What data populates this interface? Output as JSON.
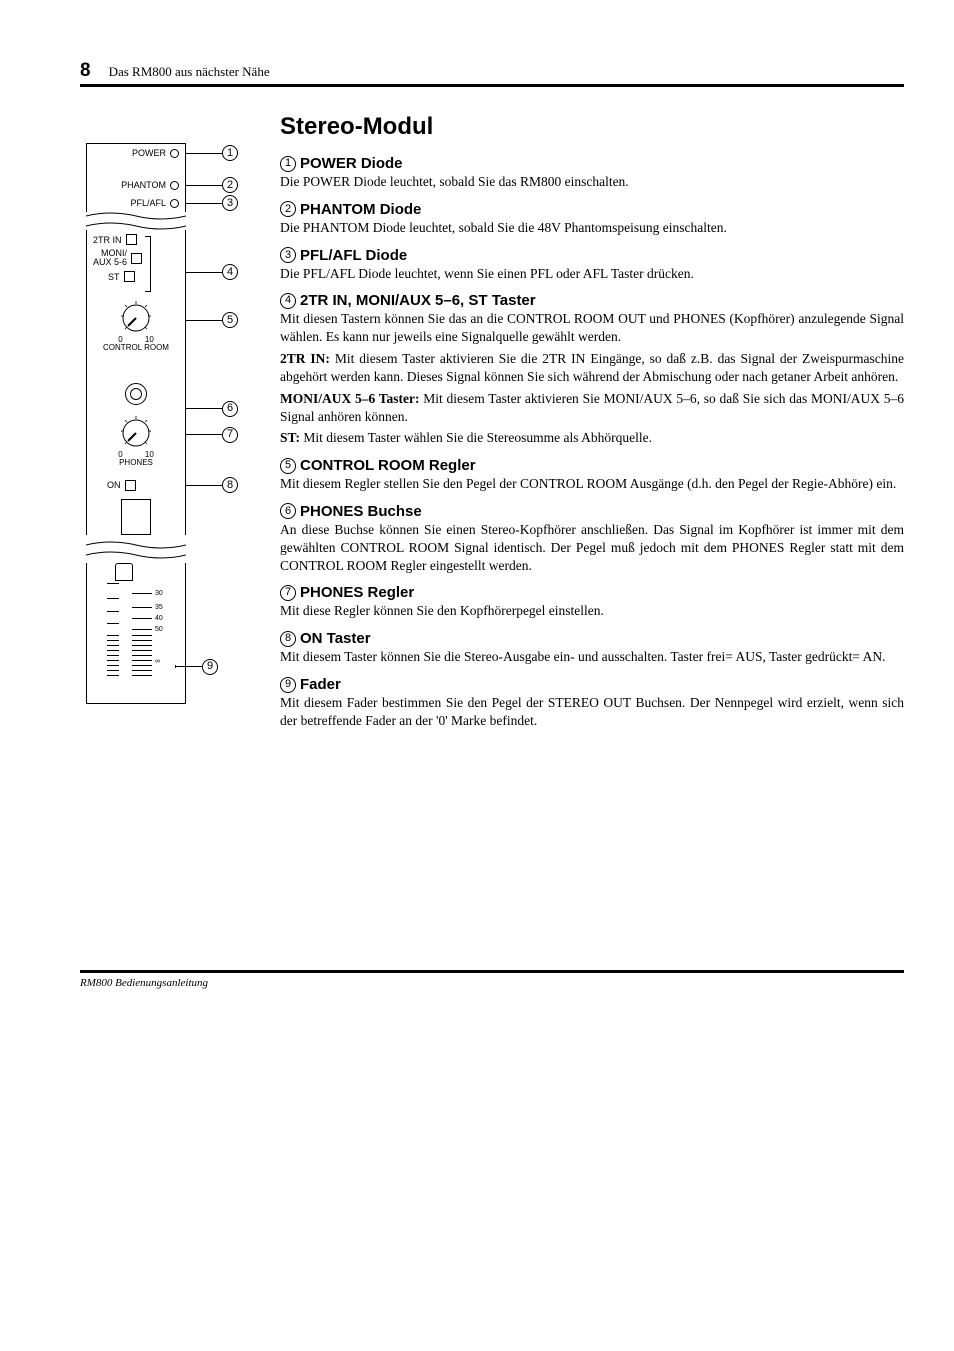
{
  "page": {
    "number": "8",
    "header": "Das RM800 aus nächster Nähe",
    "title": "Stereo-Modul",
    "footer": "RM800 Bedienungsanleitung"
  },
  "diagram": {
    "labels": {
      "power": "POWER",
      "phantom": "PHANTOM",
      "pfl_afl": "PFL/AFL",
      "tr_in": "2TR IN",
      "moni": "MONI/",
      "aux": "AUX 5-6",
      "st": "ST",
      "ctrl_room_scale_left": "0",
      "ctrl_room_scale_right": "10",
      "ctrl_room": "CONTROL ROOM",
      "phones_scale_left": "0",
      "phones_scale_right": "10",
      "phones": "PHONES",
      "on": "ON",
      "fader_marks": [
        "30",
        "35",
        "40",
        "50",
        "∞"
      ]
    },
    "callouts": [
      "1",
      "2",
      "3",
      "4",
      "5",
      "6",
      "7",
      "8",
      "9"
    ]
  },
  "sections": [
    {
      "num": "1",
      "title": "POWER Diode",
      "paras": [
        {
          "text": "Die POWER Diode leuchtet, sobald Sie das RM800 einschalten."
        }
      ]
    },
    {
      "num": "2",
      "title": "PHANTOM Diode",
      "paras": [
        {
          "text": "Die PHANTOM Diode leuchtet, sobald Sie die 48V Phantomspeisung einschalten."
        }
      ]
    },
    {
      "num": "3",
      "title": "PFL/AFL Diode",
      "paras": [
        {
          "text": "Die PFL/AFL Diode leuchtet, wenn Sie einen PFL oder AFL Taster drücken."
        }
      ]
    },
    {
      "num": "4",
      "title": "2TR IN, MONI/AUX 5–6, ST Taster",
      "paras": [
        {
          "text": "Mit diesen Tastern können Sie das an die CONTROL ROOM OUT und PHONES (Kopfhörer) anzulegende Signal wählen. Es kann nur jeweils eine Signalquelle gewählt werden."
        },
        {
          "lead": "2TR IN:",
          "text": " Mit diesem Taster aktivieren Sie die 2TR IN Eingänge, so daß z.B. das Signal der Zweispurmaschine abgehört werden kann. Dieses Signal können Sie sich während der Abmischung oder nach getaner Arbeit anhören."
        },
        {
          "lead": "MONI/AUX 5–6 Taster:",
          "text": " Mit diesem Taster aktivieren Sie MONI/AUX 5–6, so daß Sie sich das MONI/AUX 5–6 Signal anhören können."
        },
        {
          "lead": "ST:",
          "text": " Mit diesem Taster wählen Sie die Stereosumme als Abhörquelle."
        }
      ]
    },
    {
      "num": "5",
      "title": "CONTROL ROOM Regler",
      "paras": [
        {
          "text": "Mit diesem Regler stellen Sie den Pegel der CONTROL ROOM Ausgänge (d.h. den Pegel der Regie-Abhöre) ein."
        }
      ]
    },
    {
      "num": "6",
      "title": "PHONES Buchse",
      "paras": [
        {
          "text": "An diese Buchse können Sie einen Stereo-Kopfhörer anschließen. Das Signal im Kopfhörer ist immer mit dem gewählten CONTROL ROOM Signal identisch. Der Pegel muß jedoch mit dem PHONES Regler statt mit dem CONTROL ROOM Regler eingestellt werden."
        }
      ]
    },
    {
      "num": "7",
      "title": "PHONES Regler",
      "paras": [
        {
          "text": "Mit diese Regler können Sie den Kopfhörerpegel einstellen."
        }
      ]
    },
    {
      "num": "8",
      "title": "ON Taster",
      "paras": [
        {
          "text": "Mit diesem Taster können Sie die Stereo-Ausgabe ein- und ausschalten. Taster frei= AUS, Taster gedrückt= AN."
        }
      ]
    },
    {
      "num": "9",
      "title": "Fader",
      "paras": [
        {
          "text": "Mit diesem Fader bestimmen Sie den Pegel der STEREO OUT Buchsen. Der Nennpegel wird erzielt, wenn sich der betreffende Fader an der '0' Marke befindet."
        }
      ]
    }
  ]
}
